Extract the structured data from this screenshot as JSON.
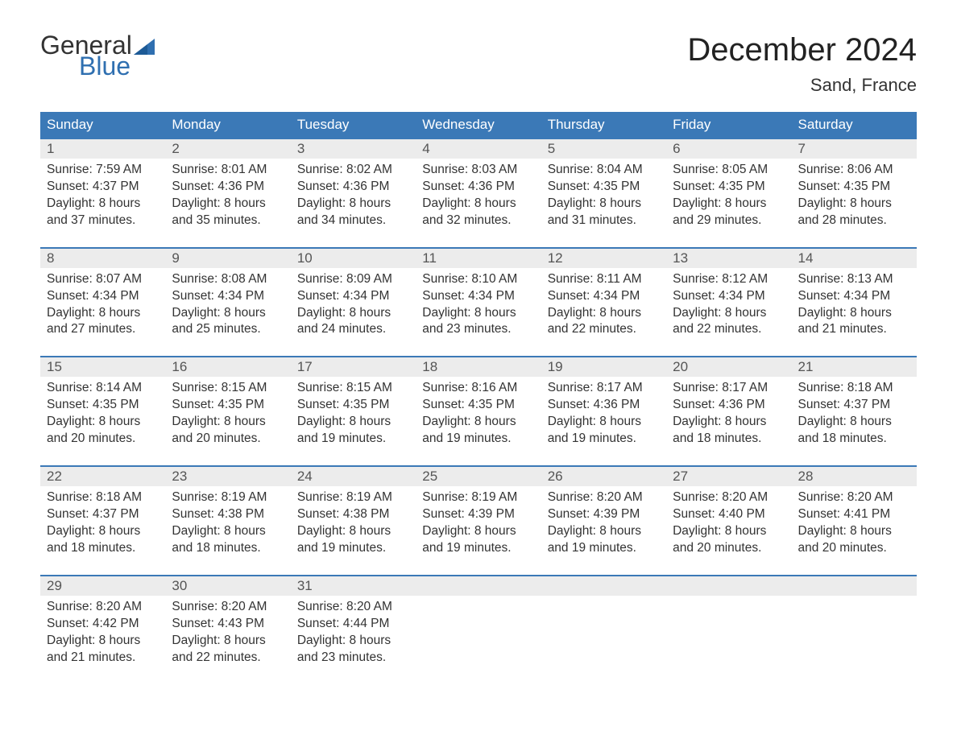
{
  "brand": {
    "part1": "General",
    "part2": "Blue",
    "text_color": "#333333",
    "accent_color": "#2f6fb0"
  },
  "title": "December 2024",
  "location": "Sand, France",
  "colors": {
    "header_bg": "#3b79b7",
    "header_text": "#ffffff",
    "daynum_bg": "#ececec",
    "week_border": "#3b79b7",
    "body_text": "#333333",
    "background": "#ffffff"
  },
  "fonts": {
    "title_size": 40,
    "location_size": 22,
    "weekday_size": 17,
    "daynum_size": 17,
    "detail_size": 15.5
  },
  "weekdays": [
    "Sunday",
    "Monday",
    "Tuesday",
    "Wednesday",
    "Thursday",
    "Friday",
    "Saturday"
  ],
  "weeks": [
    [
      {
        "n": "1",
        "sunrise": "Sunrise: 7:59 AM",
        "sunset": "Sunset: 4:37 PM",
        "d1": "Daylight: 8 hours",
        "d2": "and 37 minutes."
      },
      {
        "n": "2",
        "sunrise": "Sunrise: 8:01 AM",
        "sunset": "Sunset: 4:36 PM",
        "d1": "Daylight: 8 hours",
        "d2": "and 35 minutes."
      },
      {
        "n": "3",
        "sunrise": "Sunrise: 8:02 AM",
        "sunset": "Sunset: 4:36 PM",
        "d1": "Daylight: 8 hours",
        "d2": "and 34 minutes."
      },
      {
        "n": "4",
        "sunrise": "Sunrise: 8:03 AM",
        "sunset": "Sunset: 4:36 PM",
        "d1": "Daylight: 8 hours",
        "d2": "and 32 minutes."
      },
      {
        "n": "5",
        "sunrise": "Sunrise: 8:04 AM",
        "sunset": "Sunset: 4:35 PM",
        "d1": "Daylight: 8 hours",
        "d2": "and 31 minutes."
      },
      {
        "n": "6",
        "sunrise": "Sunrise: 8:05 AM",
        "sunset": "Sunset: 4:35 PM",
        "d1": "Daylight: 8 hours",
        "d2": "and 29 minutes."
      },
      {
        "n": "7",
        "sunrise": "Sunrise: 8:06 AM",
        "sunset": "Sunset: 4:35 PM",
        "d1": "Daylight: 8 hours",
        "d2": "and 28 minutes."
      }
    ],
    [
      {
        "n": "8",
        "sunrise": "Sunrise: 8:07 AM",
        "sunset": "Sunset: 4:34 PM",
        "d1": "Daylight: 8 hours",
        "d2": "and 27 minutes."
      },
      {
        "n": "9",
        "sunrise": "Sunrise: 8:08 AM",
        "sunset": "Sunset: 4:34 PM",
        "d1": "Daylight: 8 hours",
        "d2": "and 25 minutes."
      },
      {
        "n": "10",
        "sunrise": "Sunrise: 8:09 AM",
        "sunset": "Sunset: 4:34 PM",
        "d1": "Daylight: 8 hours",
        "d2": "and 24 minutes."
      },
      {
        "n": "11",
        "sunrise": "Sunrise: 8:10 AM",
        "sunset": "Sunset: 4:34 PM",
        "d1": "Daylight: 8 hours",
        "d2": "and 23 minutes."
      },
      {
        "n": "12",
        "sunrise": "Sunrise: 8:11 AM",
        "sunset": "Sunset: 4:34 PM",
        "d1": "Daylight: 8 hours",
        "d2": "and 22 minutes."
      },
      {
        "n": "13",
        "sunrise": "Sunrise: 8:12 AM",
        "sunset": "Sunset: 4:34 PM",
        "d1": "Daylight: 8 hours",
        "d2": "and 22 minutes."
      },
      {
        "n": "14",
        "sunrise": "Sunrise: 8:13 AM",
        "sunset": "Sunset: 4:34 PM",
        "d1": "Daylight: 8 hours",
        "d2": "and 21 minutes."
      }
    ],
    [
      {
        "n": "15",
        "sunrise": "Sunrise: 8:14 AM",
        "sunset": "Sunset: 4:35 PM",
        "d1": "Daylight: 8 hours",
        "d2": "and 20 minutes."
      },
      {
        "n": "16",
        "sunrise": "Sunrise: 8:15 AM",
        "sunset": "Sunset: 4:35 PM",
        "d1": "Daylight: 8 hours",
        "d2": "and 20 minutes."
      },
      {
        "n": "17",
        "sunrise": "Sunrise: 8:15 AM",
        "sunset": "Sunset: 4:35 PM",
        "d1": "Daylight: 8 hours",
        "d2": "and 19 minutes."
      },
      {
        "n": "18",
        "sunrise": "Sunrise: 8:16 AM",
        "sunset": "Sunset: 4:35 PM",
        "d1": "Daylight: 8 hours",
        "d2": "and 19 minutes."
      },
      {
        "n": "19",
        "sunrise": "Sunrise: 8:17 AM",
        "sunset": "Sunset: 4:36 PM",
        "d1": "Daylight: 8 hours",
        "d2": "and 19 minutes."
      },
      {
        "n": "20",
        "sunrise": "Sunrise: 8:17 AM",
        "sunset": "Sunset: 4:36 PM",
        "d1": "Daylight: 8 hours",
        "d2": "and 18 minutes."
      },
      {
        "n": "21",
        "sunrise": "Sunrise: 8:18 AM",
        "sunset": "Sunset: 4:37 PM",
        "d1": "Daylight: 8 hours",
        "d2": "and 18 minutes."
      }
    ],
    [
      {
        "n": "22",
        "sunrise": "Sunrise: 8:18 AM",
        "sunset": "Sunset: 4:37 PM",
        "d1": "Daylight: 8 hours",
        "d2": "and 18 minutes."
      },
      {
        "n": "23",
        "sunrise": "Sunrise: 8:19 AM",
        "sunset": "Sunset: 4:38 PM",
        "d1": "Daylight: 8 hours",
        "d2": "and 18 minutes."
      },
      {
        "n": "24",
        "sunrise": "Sunrise: 8:19 AM",
        "sunset": "Sunset: 4:38 PM",
        "d1": "Daylight: 8 hours",
        "d2": "and 19 minutes."
      },
      {
        "n": "25",
        "sunrise": "Sunrise: 8:19 AM",
        "sunset": "Sunset: 4:39 PM",
        "d1": "Daylight: 8 hours",
        "d2": "and 19 minutes."
      },
      {
        "n": "26",
        "sunrise": "Sunrise: 8:20 AM",
        "sunset": "Sunset: 4:39 PM",
        "d1": "Daylight: 8 hours",
        "d2": "and 19 minutes."
      },
      {
        "n": "27",
        "sunrise": "Sunrise: 8:20 AM",
        "sunset": "Sunset: 4:40 PM",
        "d1": "Daylight: 8 hours",
        "d2": "and 20 minutes."
      },
      {
        "n": "28",
        "sunrise": "Sunrise: 8:20 AM",
        "sunset": "Sunset: 4:41 PM",
        "d1": "Daylight: 8 hours",
        "d2": "and 20 minutes."
      }
    ],
    [
      {
        "n": "29",
        "sunrise": "Sunrise: 8:20 AM",
        "sunset": "Sunset: 4:42 PM",
        "d1": "Daylight: 8 hours",
        "d2": "and 21 minutes."
      },
      {
        "n": "30",
        "sunrise": "Sunrise: 8:20 AM",
        "sunset": "Sunset: 4:43 PM",
        "d1": "Daylight: 8 hours",
        "d2": "and 22 minutes."
      },
      {
        "n": "31",
        "sunrise": "Sunrise: 8:20 AM",
        "sunset": "Sunset: 4:44 PM",
        "d1": "Daylight: 8 hours",
        "d2": "and 23 minutes."
      },
      null,
      null,
      null,
      null
    ]
  ]
}
